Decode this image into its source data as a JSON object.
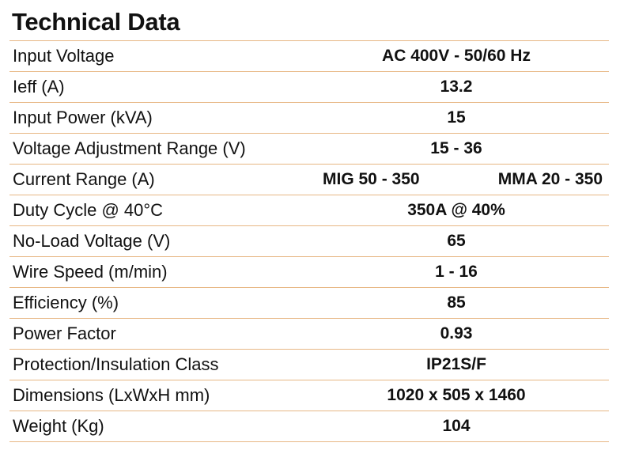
{
  "title": "Technical Data",
  "rows": [
    {
      "label": "Input Voltage",
      "value": "AC 400V - 50/60 Hz"
    },
    {
      "label": "Ieff (A)",
      "value": "13.2"
    },
    {
      "label": "Input Power (kVA)",
      "value": "15"
    },
    {
      "label": "Voltage Adjustment Range (V)",
      "value": "15 - 36"
    },
    {
      "label": "Current Range (A)",
      "value_mig": "MIG 50 - 350",
      "value_mma": "MMA 20 - 350"
    },
    {
      "label": "Duty Cycle @ 40°C",
      "value": "350A @ 40%"
    },
    {
      "label": "No-Load Voltage (V)",
      "value": "65"
    },
    {
      "label": "Wire Speed (m/min)",
      "value": "1 - 16"
    },
    {
      "label": "Efficiency (%)",
      "value": "85"
    },
    {
      "label": "Power Factor",
      "value": "0.93"
    },
    {
      "label": "Protection/Insulation Class",
      "value": "IP21S/F"
    },
    {
      "label": "Dimensions (LxWxH mm)",
      "value": "1020 x 505 x 1460"
    },
    {
      "label": "Weight (Kg)",
      "value": "104"
    }
  ],
  "colors": {
    "row_divider": "#e7b784",
    "text": "#111111"
  }
}
